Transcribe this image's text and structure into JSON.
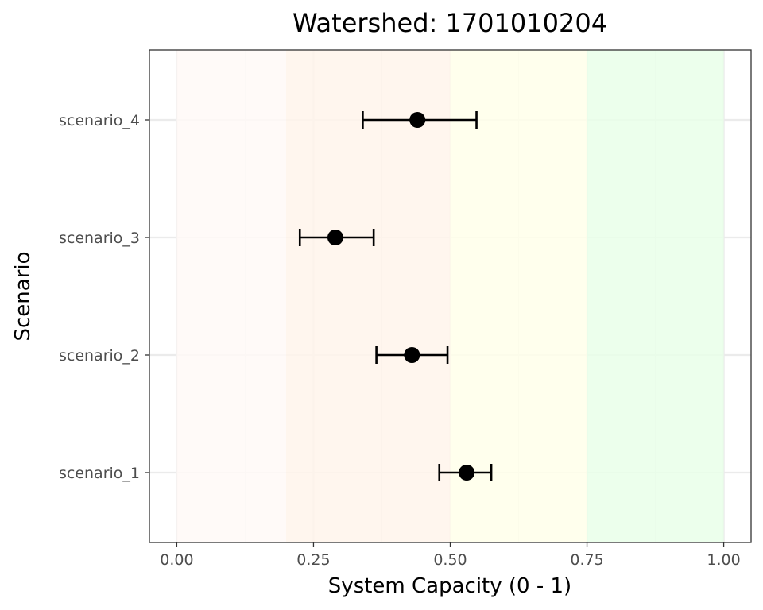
{
  "chart_data": {
    "type": "scatter",
    "title": "Watershed: 1701010204",
    "xlabel": "System Capacity (0 - 1)",
    "ylabel": "Scenario",
    "xlim": [
      -0.05,
      1.05
    ],
    "x_ticks": [
      0,
      0.25,
      0.5,
      0.75,
      1
    ],
    "x_tick_labels": [
      "0.00",
      "0.25",
      "0.50",
      "0.75",
      "1.00"
    ],
    "categories": [
      "scenario_1",
      "scenario_2",
      "scenario_3",
      "scenario_4"
    ],
    "series": [
      {
        "values": [
          {
            "category": "scenario_1",
            "estimate": 0.53,
            "lower": 0.48,
            "upper": 0.575
          },
          {
            "category": "scenario_2",
            "estimate": 0.43,
            "lower": 0.365,
            "upper": 0.495
          },
          {
            "category": "scenario_3",
            "estimate": 0.29,
            "lower": 0.225,
            "upper": 0.36
          },
          {
            "category": "scenario_4",
            "estimate": 0.44,
            "lower": 0.34,
            "upper": 0.548
          }
        ]
      }
    ],
    "background_bands": [
      {
        "from": 0,
        "to": 0.2,
        "color": "#fff9f7"
      },
      {
        "from": 0.2,
        "to": 0.5,
        "color": "#fff5eb"
      },
      {
        "from": 0.5,
        "to": 0.75,
        "color": "#ffffea"
      },
      {
        "from": 0.75,
        "to": 1,
        "color": "#e9ffe9"
      }
    ],
    "grid": true,
    "legend": "none",
    "colors": {
      "point": "#000000",
      "errorbar": "#000000",
      "grid": "#ebebeb",
      "panel_border": "#333333"
    }
  }
}
